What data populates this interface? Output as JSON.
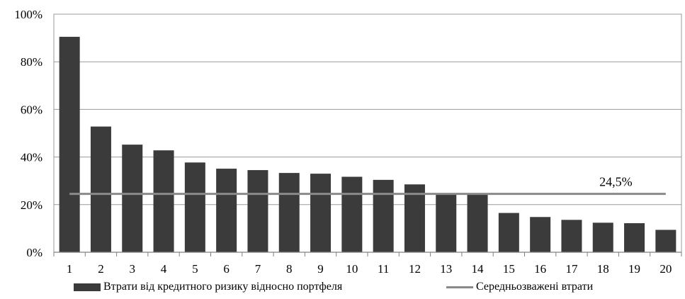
{
  "chart_data": {
    "type": "bar",
    "categories": [
      "1",
      "2",
      "3",
      "4",
      "5",
      "6",
      "7",
      "8",
      "9",
      "10",
      "11",
      "12",
      "13",
      "14",
      "15",
      "16",
      "17",
      "18",
      "19",
      "20"
    ],
    "series": [
      {
        "name": "Втрати від кредитного ризику відносно портфеля",
        "type": "bar",
        "values": [
          90.5,
          52.8,
          45.2,
          42.8,
          37.7,
          35.1,
          34.5,
          33.3,
          33.0,
          31.7,
          30.4,
          28.5,
          24.8,
          24.8,
          16.5,
          14.8,
          13.6,
          12.4,
          12.2,
          9.4
        ]
      },
      {
        "name": "Середньозважені втрати",
        "type": "line",
        "value": 24.5
      }
    ],
    "avg_label": "24,5%",
    "y_ticks": [
      "0%",
      "20%",
      "40%",
      "60%",
      "80%",
      "100%"
    ],
    "ylim": [
      0,
      100
    ],
    "grid": true,
    "legend_position": "bottom",
    "colors": {
      "bar": "#3b3b3b",
      "line": "#8a8a8a",
      "grid": "#9a9a9a",
      "axis": "#808080"
    }
  }
}
